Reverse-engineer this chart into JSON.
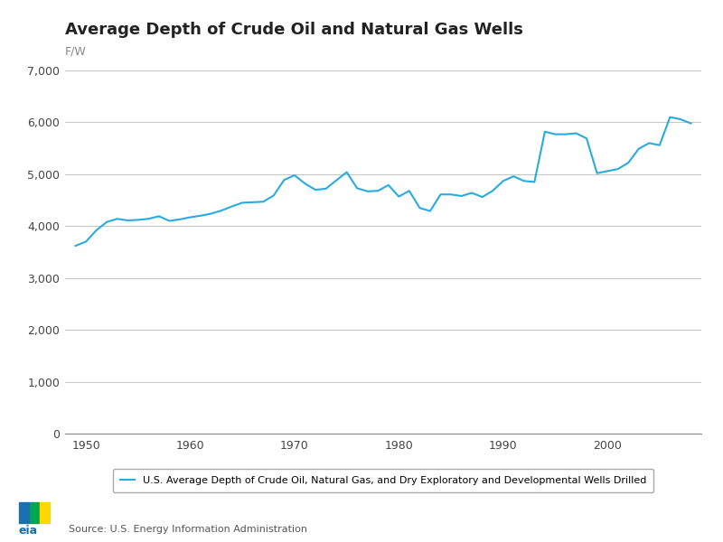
{
  "title": "Average Depth of Crude Oil and Natural Gas Wells",
  "ylabel": "F/W",
  "line_color": "#29ABE2",
  "background_color": "#ffffff",
  "legend_label": "U.S. Average Depth of Crude Oil, Natural Gas, and Dry Exploratory and Developmental Wells Drilled",
  "source_text": "Source: U.S. Energy Information Administration",
  "years": [
    1949,
    1950,
    1951,
    1952,
    1953,
    1954,
    1955,
    1956,
    1957,
    1958,
    1959,
    1960,
    1961,
    1962,
    1963,
    1964,
    1965,
    1966,
    1967,
    1968,
    1969,
    1970,
    1971,
    1972,
    1973,
    1974,
    1975,
    1976,
    1977,
    1978,
    1979,
    1980,
    1981,
    1982,
    1983,
    1984,
    1985,
    1986,
    1987,
    1988,
    1989,
    1990,
    1991,
    1992,
    1993,
    1994,
    1995,
    1996,
    1997,
    1998,
    1999,
    2000,
    2001,
    2002,
    2003,
    2004,
    2005,
    2006,
    2007,
    2008
  ],
  "values": [
    3620,
    3700,
    3920,
    4080,
    4140,
    4110,
    4120,
    4140,
    4190,
    4100,
    4130,
    4170,
    4200,
    4240,
    4300,
    4380,
    4450,
    4460,
    4470,
    4590,
    4890,
    4980,
    4820,
    4700,
    4720,
    4880,
    5040,
    4730,
    4670,
    4680,
    4790,
    4570,
    4680,
    4350,
    4290,
    4610,
    4610,
    4580,
    4640,
    4560,
    4680,
    4870,
    4960,
    4870,
    4850,
    5820,
    5770,
    5770,
    5790,
    5690,
    5020,
    5060,
    5100,
    5220,
    5490,
    5600,
    5560,
    6100,
    6060,
    5980
  ],
  "ylim": [
    0,
    7000
  ],
  "yticks": [
    0,
    1000,
    2000,
    3000,
    4000,
    5000,
    6000,
    7000
  ],
  "xticks": [
    1950,
    1960,
    1970,
    1980,
    1990,
    2000
  ],
  "xlim": [
    1948,
    2009
  ],
  "grid_color": "#c8c8c8",
  "title_fontsize": 13,
  "axis_label_fontsize": 9,
  "tick_fontsize": 9,
  "legend_fontsize": 8,
  "source_fontsize": 8,
  "line_width": 1.5
}
